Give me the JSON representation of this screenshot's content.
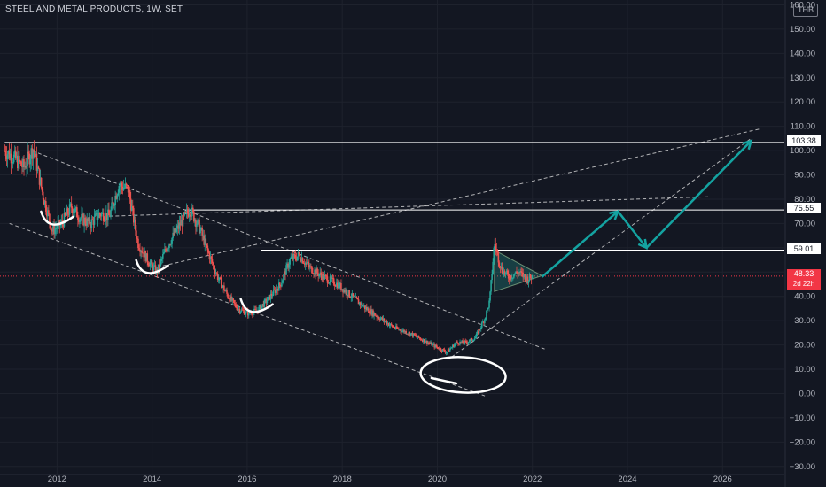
{
  "title": "STEEL AND METAL PRODUCTS, 1W, SET",
  "currency": "THB",
  "colors": {
    "background": "#131722",
    "up": "#26a69a",
    "down": "#ef5350",
    "annotation": "#ffffff",
    "arrow": "#14a3a1",
    "last_price": "#f23645"
  },
  "price_levels": [
    "103.38",
    "75.55",
    "59.01"
  ],
  "last_price": {
    "value": "48.33",
    "countdown": "2d 22h"
  },
  "chart_data": {
    "type": "candlestick",
    "x_ticks": [
      "2012",
      "2014",
      "2016",
      "2018",
      "2020",
      "2022",
      "2024",
      "2026"
    ],
    "y_ticks": [
      "160.00",
      "150.00",
      "140.00",
      "130.00",
      "120.00",
      "110.00",
      "100.00",
      "90.00",
      "80.00",
      "70.00",
      "60.00",
      "50.00",
      "40.00",
      "30.00",
      "20.00",
      "10.00",
      "0.00",
      "−10.00",
      "−20.00",
      "−30.00"
    ],
    "y_axis_values": [
      160,
      150,
      140,
      130,
      120,
      110,
      100,
      90,
      80,
      70,
      60,
      50,
      40,
      30,
      20,
      10,
      0,
      -10,
      -20,
      -30
    ],
    "ylim": [
      -33,
      162
    ],
    "xlim": [
      2010.8,
      2027.3
    ],
    "price_path": [
      [
        2010.9,
        100
      ],
      [
        2011.1,
        97
      ],
      [
        2011.3,
        93
      ],
      [
        2011.5,
        101
      ],
      [
        2011.7,
        82
      ],
      [
        2011.9,
        67
      ],
      [
        2012.1,
        70
      ],
      [
        2012.3,
        77
      ],
      [
        2012.5,
        72
      ],
      [
        2012.7,
        70
      ],
      [
        2012.9,
        74
      ],
      [
        2013.1,
        73
      ],
      [
        2013.3,
        86
      ],
      [
        2013.5,
        84
      ],
      [
        2013.7,
        62
      ],
      [
        2013.9,
        55
      ],
      [
        2014.1,
        50
      ],
      [
        2014.3,
        60
      ],
      [
        2014.6,
        70
      ],
      [
        2014.8,
        76
      ],
      [
        2015.0,
        68
      ],
      [
        2015.2,
        57
      ],
      [
        2015.4,
        47
      ],
      [
        2015.6,
        40
      ],
      [
        2015.8,
        35
      ],
      [
        2016.0,
        33
      ],
      [
        2016.2,
        34
      ],
      [
        2016.4,
        38
      ],
      [
        2016.7,
        45
      ],
      [
        2016.9,
        55
      ],
      [
        2017.1,
        57
      ],
      [
        2017.3,
        52
      ],
      [
        2017.6,
        48
      ],
      [
        2017.9,
        45
      ],
      [
        2018.2,
        40
      ],
      [
        2018.5,
        35
      ],
      [
        2018.8,
        31
      ],
      [
        2019.1,
        27
      ],
      [
        2019.4,
        25
      ],
      [
        2019.7,
        22
      ],
      [
        2020.0,
        19
      ],
      [
        2020.2,
        17
      ],
      [
        2020.4,
        21
      ],
      [
        2020.6,
        21
      ],
      [
        2020.8,
        23
      ],
      [
        2021.0,
        31
      ],
      [
        2021.1,
        38
      ],
      [
        2021.2,
        62
      ],
      [
        2021.35,
        51
      ],
      [
        2021.5,
        48
      ],
      [
        2021.7,
        50
      ],
      [
        2021.9,
        47
      ],
      [
        2022.0,
        48.33
      ]
    ],
    "horizontal_lines": [
      {
        "value": 103.38,
        "from": 2010.9
      },
      {
        "value": 75.55,
        "from": 2014.7
      },
      {
        "value": 59.01,
        "from": 2016.3
      }
    ],
    "trend_lines": [
      {
        "style": "dashed",
        "points": [
          [
            2011.6,
            99
          ],
          [
            2022.3,
            18
          ]
        ]
      },
      {
        "style": "dashed",
        "points": [
          [
            2011.0,
            70
          ],
          [
            2021.0,
            -1
          ]
        ]
      },
      {
        "style": "dashed",
        "points": [
          [
            2014.1,
            52
          ],
          [
            2026.8,
            109
          ]
        ]
      },
      {
        "style": "dashed",
        "points": [
          [
            2013.1,
            73
          ],
          [
            2025.7,
            81
          ]
        ]
      },
      {
        "style": "dashed",
        "points": [
          [
            2020.3,
            15
          ],
          [
            2026.6,
            105
          ]
        ]
      },
      {
        "style": "solid",
        "points": [
          [
            2011.7,
            101
          ],
          [
            2026.6,
            103.38
          ]
        ]
      }
    ],
    "triangle": [
      [
        2021.2,
        59
      ],
      [
        2021.2,
        42
      ],
      [
        2022.2,
        48.5
      ]
    ],
    "projection_arrow": [
      [
        2022.2,
        48
      ],
      [
        2023.8,
        75
      ],
      [
        2024.4,
        60
      ],
      [
        2026.6,
        104
      ]
    ],
    "circle_annotations": [
      {
        "type": "arc",
        "center": [
          2012.0,
          72
        ],
        "label": ""
      },
      {
        "type": "arc",
        "center": [
          2014.0,
          52
        ],
        "label": ""
      },
      {
        "type": "arc",
        "center": [
          2016.2,
          36
        ],
        "label": ""
      },
      {
        "type": "circle",
        "center": [
          2020.4,
          10
        ],
        "label": ""
      }
    ]
  }
}
